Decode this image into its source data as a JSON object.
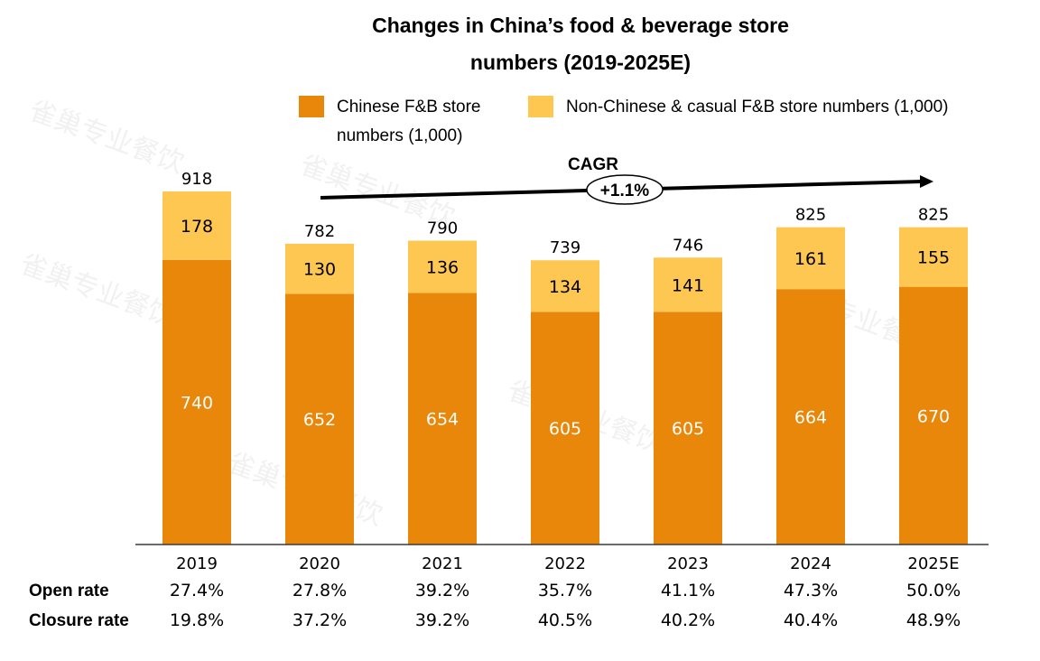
{
  "chart_data": {
    "type": "bar",
    "stacked": true,
    "title_line1": "Changes in China’s food & beverage store",
    "title_line2": "numbers (2019-2025E)",
    "categories": [
      "2019",
      "2020",
      "2021",
      "2022",
      "2023",
      "2024",
      "2025E"
    ],
    "series": [
      {
        "name": "Chinese F&B store numbers (1,000)",
        "legend_line1": "Chinese F&B store",
        "legend_line2": "numbers (1,000)",
        "color": "#E8870A",
        "label_color": "#ffffff",
        "values": [
          740,
          652,
          654,
          605,
          605,
          664,
          670
        ]
      },
      {
        "name": "Non-Chinese & casual F&B store numbers (1,000)",
        "legend_line1": "Non-Chinese & casual F&B store numbers (1,000)",
        "color": "#FDC751",
        "label_color": "#000000",
        "values": [
          178,
          130,
          136,
          134,
          141,
          161,
          155
        ]
      }
    ],
    "totals": [
      "918",
      "782",
      "790",
      "739",
      "746",
      "825",
      "825"
    ],
    "ylim": [
      0,
      1000
    ],
    "xlabel": "",
    "ylabel": "",
    "legend_position": "top",
    "cagr": {
      "label": "CAGR",
      "value": "+1.1%"
    },
    "rate_rows": [
      {
        "label": "Open rate",
        "values": [
          "27.4%",
          "27.8%",
          "39.2%",
          "35.7%",
          "41.1%",
          "47.3%",
          "50.0%"
        ]
      },
      {
        "label": "Closure rate",
        "values": [
          "19.8%",
          "37.2%",
          "39.2%",
          "40.5%",
          "40.2%",
          "40.4%",
          "48.9%"
        ]
      }
    ]
  },
  "watermark": "雀巢专业餐饮"
}
